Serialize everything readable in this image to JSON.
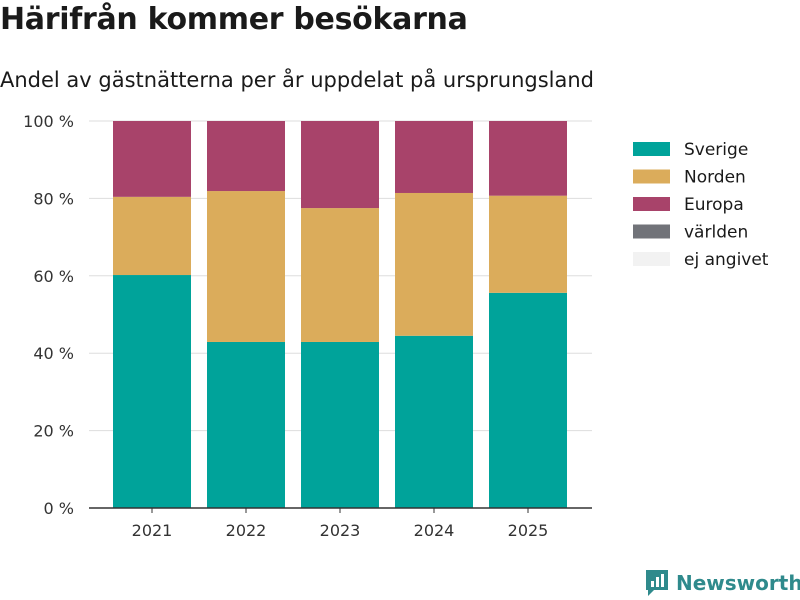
{
  "title": "Härifrån kommer besökarna",
  "subtitle": "Andel av gästnätterna per år uppdelat på ursprungsland",
  "brand": "Newsworthy",
  "chart_data": {
    "type": "bar",
    "stacked": true,
    "categories": [
      "2021",
      "2022",
      "2023",
      "2024",
      "2025"
    ],
    "series": [
      {
        "name": "Sverige",
        "color": "#00a39a",
        "values": [
          60.2,
          42.9,
          42.9,
          44.5,
          55.6
        ]
      },
      {
        "name": "Norden",
        "color": "#dbac5b",
        "values": [
          20.2,
          39.0,
          34.6,
          36.9,
          25.1
        ]
      },
      {
        "name": "Europa",
        "color": "#a8436a",
        "values": [
          19.6,
          18.1,
          22.5,
          18.6,
          19.3
        ]
      },
      {
        "name": "världen",
        "color": "#717379",
        "values": [
          0,
          0,
          0,
          0,
          0
        ]
      },
      {
        "name": "ej angivet",
        "color": "#f2f2f2",
        "values": [
          0,
          0,
          0,
          0,
          0
        ]
      }
    ],
    "y_ticks": [
      "0 %",
      "20 %",
      "40 %",
      "60 %",
      "80 %",
      "100 %"
    ],
    "ylim": [
      0,
      100
    ],
    "grid": true,
    "legend_position": "right"
  }
}
